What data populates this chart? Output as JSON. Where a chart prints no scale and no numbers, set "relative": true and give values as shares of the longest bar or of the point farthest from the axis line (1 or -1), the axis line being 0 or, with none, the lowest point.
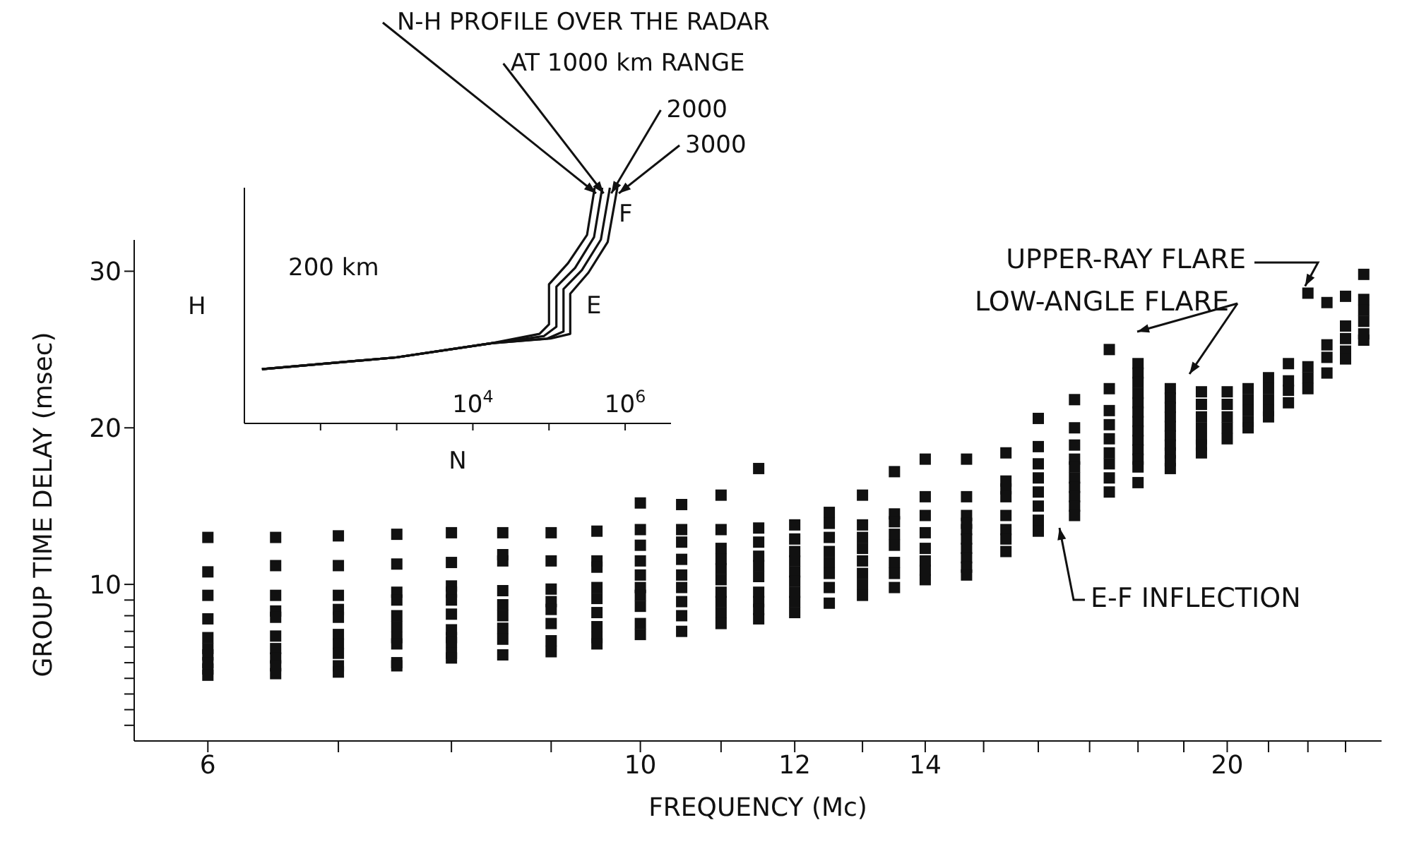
{
  "chart_data": [
    {
      "type": "scatter",
      "xlabel": "FREQUENCY (Mc)",
      "ylabel": "GROUP TIME DELAY (msec)",
      "log": "x",
      "color": "#111111",
      "marker": "square",
      "xlim": [
        5.5,
        24
      ],
      "xticks": [
        6,
        {
          "value": 7,
          "label": null
        },
        {
          "value": 8,
          "label": null
        },
        {
          "value": 9,
          "label": null
        },
        10,
        {
          "value": 11,
          "label": null
        },
        12,
        {
          "value": 13,
          "label": null
        },
        14,
        {
          "value": 15,
          "label": null
        },
        {
          "value": 16,
          "label": null
        },
        {
          "value": 17,
          "label": null
        },
        {
          "value": 18,
          "label": null
        },
        {
          "value": 19,
          "label": null
        },
        20,
        {
          "value": 21,
          "label": null
        },
        {
          "value": 22,
          "label": null
        },
        {
          "value": 23,
          "label": null
        }
      ],
      "ylim": [
        0,
        32
      ],
      "yticks": [
        {
          "value": 1,
          "label": null
        },
        {
          "value": 2,
          "label": null
        },
        {
          "value": 3,
          "label": null
        },
        {
          "value": 4,
          "label": null
        },
        {
          "value": 5,
          "label": null
        },
        {
          "value": 6,
          "label": null
        },
        {
          "value": 7,
          "label": null
        },
        {
          "value": 8,
          "label": null
        },
        {
          "value": 9,
          "label": null
        },
        10,
        20,
        30
      ],
      "x": [
        6,
        6,
        6,
        6,
        6,
        6,
        6,
        6,
        6,
        6,
        6.5,
        6.5,
        6.5,
        6.5,
        6.5,
        6.5,
        6.5,
        6.5,
        6.5,
        6.5,
        7,
        7,
        7,
        7,
        7,
        7,
        7,
        7,
        7,
        7,
        7.5,
        7.5,
        7.5,
        7.5,
        7.5,
        7.5,
        7.5,
        7.5,
        7.5,
        7.5,
        8,
        8,
        8,
        8,
        8,
        8,
        8,
        8,
        8,
        8,
        8,
        8.5,
        8.5,
        8.5,
        8.5,
        8.5,
        8.5,
        8.5,
        8.5,
        8.5,
        9,
        9,
        9,
        9,
        9,
        9,
        9,
        9,
        9.5,
        9.5,
        9.5,
        9.5,
        9.5,
        9.5,
        9.5,
        9.5,
        9.5,
        10,
        10,
        10,
        10,
        10,
        10,
        10,
        10,
        10,
        10,
        10.5,
        10.5,
        10.5,
        10.5,
        10.5,
        10.5,
        10.5,
        10.5,
        10.5,
        11,
        11,
        11,
        11,
        11,
        11,
        11,
        11,
        11,
        11,
        11.5,
        11.5,
        11.5,
        11.5,
        11.5,
        11.5,
        11.5,
        11.5,
        11.5,
        11.5,
        12,
        12,
        12,
        12,
        12,
        12,
        12,
        12,
        12,
        12.5,
        12.5,
        12.5,
        12.5,
        12.5,
        12.5,
        12.5,
        12.5,
        13,
        13,
        13,
        13,
        13,
        13,
        13,
        13,
        13.5,
        13.5,
        13.5,
        13.5,
        13.5,
        13.5,
        13.5,
        13.5,
        14,
        14,
        14,
        14,
        14,
        14,
        14,
        14,
        14.7,
        14.7,
        14.7,
        14.7,
        14.7,
        14.7,
        14.7,
        14.7,
        14.7,
        14.7,
        15.4,
        15.4,
        15.4,
        15.4,
        15.4,
        15.4,
        15.4,
        15.4,
        16,
        16,
        16,
        16,
        16,
        16,
        16,
        16,
        16.7,
        16.7,
        16.7,
        16.7,
        16.7,
        16.7,
        16.7,
        16.7,
        16.7,
        16.7,
        17.4,
        17.4,
        17.4,
        17.4,
        17.4,
        17.4,
        17.4,
        17.4,
        17.4,
        18,
        18,
        18,
        18,
        18,
        18,
        18,
        18,
        18,
        18,
        18,
        18,
        18,
        18.7,
        18.7,
        18.7,
        18.7,
        18.7,
        18.7,
        18.7,
        18.7,
        18.7,
        18.7,
        19.4,
        19.4,
        19.4,
        19.4,
        19.4,
        19.4,
        19.4,
        20,
        20,
        20,
        20,
        20,
        20.5,
        20.5,
        20.5,
        20.5,
        20.5,
        21,
        21,
        21,
        21,
        21,
        21.5,
        21.5,
        21.5,
        21.5,
        22,
        22,
        22,
        22,
        22.5,
        22.5,
        22.5,
        22.5,
        23,
        23,
        23,
        23,
        23,
        23.5,
        23.5,
        23.5,
        23.5,
        23.5,
        23.5
      ],
      "values": [
        13.0,
        10.8,
        9.3,
        7.8,
        6.6,
        5.9,
        5.5,
        5.0,
        4.6,
        4.2,
        13.0,
        11.2,
        9.3,
        8.3,
        7.9,
        6.7,
        5.9,
        5.3,
        4.8,
        4.3,
        13.1,
        11.2,
        9.3,
        8.4,
        7.9,
        6.8,
        6.2,
        5.6,
        4.8,
        4.4,
        13.2,
        11.3,
        9.5,
        9.0,
        8.0,
        7.3,
        6.6,
        6.2,
        5.0,
        4.8,
        13.3,
        11.4,
        9.9,
        9.5,
        9.0,
        8.1,
        7.1,
        6.6,
        6.3,
        5.6,
        5.3,
        13.3,
        11.9,
        11.5,
        9.6,
        8.7,
        8.0,
        7.2,
        6.5,
        5.5,
        13.3,
        11.5,
        9.7,
        8.9,
        8.4,
        7.5,
        6.4,
        5.7,
        13.4,
        11.5,
        11.1,
        9.8,
        9.1,
        8.2,
        7.3,
        6.6,
        6.2,
        15.2,
        13.5,
        12.5,
        11.5,
        10.6,
        9.8,
        9.3,
        8.6,
        7.5,
        6.8,
        15.1,
        13.5,
        12.7,
        11.6,
        10.6,
        9.8,
        8.9,
        8.0,
        7.0,
        15.7,
        13.5,
        12.3,
        11.6,
        11.0,
        10.3,
        9.5,
        8.9,
        8.2,
        7.5,
        17.4,
        13.6,
        12.7,
        11.8,
        11.2,
        10.5,
        9.5,
        8.9,
        8.4,
        7.8,
        13.8,
        12.9,
        12.1,
        11.5,
        10.8,
        10.2,
        9.5,
        8.9,
        8.2,
        14.6,
        13.9,
        13.0,
        12.1,
        11.4,
        10.7,
        9.8,
        8.8,
        15.7,
        13.8,
        13.0,
        12.3,
        11.5,
        10.7,
        10.0,
        9.3,
        17.2,
        14.5,
        14.0,
        13.2,
        12.5,
        11.4,
        10.7,
        9.8,
        18.0,
        15.6,
        14.4,
        13.3,
        12.3,
        11.5,
        10.9,
        10.3,
        18.0,
        15.6,
        14.4,
        13.9,
        13.5,
        12.9,
        12.3,
        11.7,
        11.1,
        10.6,
        18.4,
        16.6,
        16.1,
        15.6,
        14.4,
        13.5,
        12.9,
        12.1,
        20.6,
        18.8,
        17.7,
        16.8,
        15.9,
        15.0,
        14.1,
        13.4,
        21.8,
        20.0,
        18.9,
        18.0,
        17.5,
        16.8,
        16.2,
        15.6,
        15.0,
        14.4,
        25.0,
        22.5,
        21.1,
        20.2,
        19.3,
        18.4,
        17.7,
        16.8,
        15.9,
        24.1,
        23.5,
        22.9,
        22.2,
        21.6,
        21.0,
        20.4,
        19.8,
        19.2,
        18.6,
        18.0,
        17.5,
        16.5,
        22.5,
        21.9,
        21.3,
        20.7,
        20.1,
        19.5,
        18.9,
        18.4,
        17.9,
        17.4,
        22.3,
        21.5,
        20.7,
        20.0,
        19.3,
        18.9,
        18.4,
        22.3,
        21.5,
        20.7,
        20.0,
        19.3,
        22.5,
        21.8,
        21.1,
        20.4,
        20.0,
        23.2,
        22.5,
        21.8,
        21.1,
        20.7,
        24.1,
        23.0,
        22.4,
        21.6,
        28.6,
        23.9,
        23.2,
        22.5,
        28.0,
        25.3,
        24.5,
        23.5,
        28.4,
        26.5,
        25.7,
        24.9,
        24.4,
        29.8,
        28.2,
        27.5,
        26.8,
        26.0,
        25.6
      ],
      "annotations": [
        {
          "text": "UPPER-RAY FLARE",
          "x": 22,
          "y": 28.6
        },
        "LOW-ANGLE FLARE",
        "E-F INFLECTION"
      ]
    },
    {
      "type": "line",
      "xlabel": "N",
      "ylabel": "H",
      "log": "x",
      "xlim": [
        10,
        4000000
      ],
      "xticks": [
        {
          "value": 100,
          "label": null
        },
        {
          "value": 1000,
          "label": null
        },
        {
          "value": 10000,
          "label": "10$^{4}$"
        },
        {
          "value": 100000,
          "label": null
        },
        {
          "value": 1000000,
          "label": "10$^{6}$"
        }
      ],
      "relative": true,
      "series": [
        {
          "name": "N-H PROFILE OVER THE RADAR",
          "color": "#111111",
          "x": [
            17,
            980,
            17600,
            75000,
            100000,
            100000,
            178000,
            316000,
            398000
          ],
          "values": [
            0.23,
            0.28,
            0.34,
            0.38,
            0.42,
            0.59,
            0.68,
            0.8,
            1
          ]
        },
        {
          "name": "AT 1000 km RANGE",
          "color": "#111111",
          "x": [
            17,
            980,
            17600,
            85000,
            125000,
            125000,
            220000,
            390000,
            500000
          ],
          "values": [
            0.23,
            0.28,
            0.34,
            0.37,
            0.41,
            0.58,
            0.66,
            0.79,
            1
          ]
        },
        {
          "name": "2000",
          "color": "#111111",
          "x": [
            17,
            980,
            17600,
            95000,
            155000,
            155000,
            270000,
            480000,
            630000
          ],
          "values": [
            0.23,
            0.28,
            0.34,
            0.36,
            0.39,
            0.57,
            0.65,
            0.78,
            1
          ]
        },
        {
          "name": "3000",
          "color": "#111111",
          "x": [
            17,
            980,
            17600,
            105000,
            190000,
            190000,
            330000,
            590000,
            790000
          ],
          "values": [
            0.23,
            0.28,
            0.34,
            0.36,
            0.38,
            0.55,
            0.64,
            0.77,
            1
          ]
        }
      ],
      "annotations": [
        "200 km",
        "E",
        "F"
      ]
    }
  ]
}
